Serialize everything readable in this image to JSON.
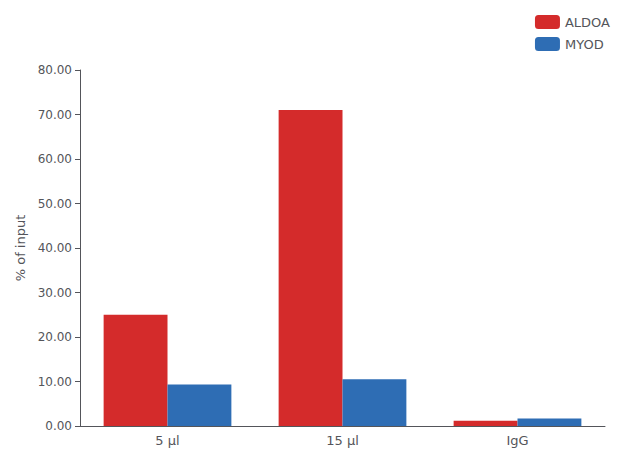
{
  "chart_data": {
    "type": "bar",
    "categories": [
      "5 µl",
      "15 µl",
      "IgG"
    ],
    "series": [
      {
        "name": "ALDOA",
        "color": "#d42b2b",
        "values": [
          25.0,
          71.0,
          1.2
        ]
      },
      {
        "name": "MYOD",
        "color": "#2e6db4",
        "values": [
          9.3,
          10.5,
          1.7
        ]
      }
    ],
    "ylabel": "% of input",
    "ylim": [
      0,
      80
    ],
    "yticks": [
      {
        "value": 0,
        "label": "0.00"
      },
      {
        "value": 10,
        "label": "10.00"
      },
      {
        "value": 20,
        "label": "20.00"
      },
      {
        "value": 30,
        "label": "30.00"
      },
      {
        "value": 40,
        "label": "40.00"
      },
      {
        "value": 50,
        "label": "50.00"
      },
      {
        "value": 60,
        "label": "60.00"
      },
      {
        "value": 70,
        "label": "70.00"
      },
      {
        "value": 80,
        "label": "80.00"
      }
    ],
    "grid": false,
    "legend": "upper right"
  }
}
